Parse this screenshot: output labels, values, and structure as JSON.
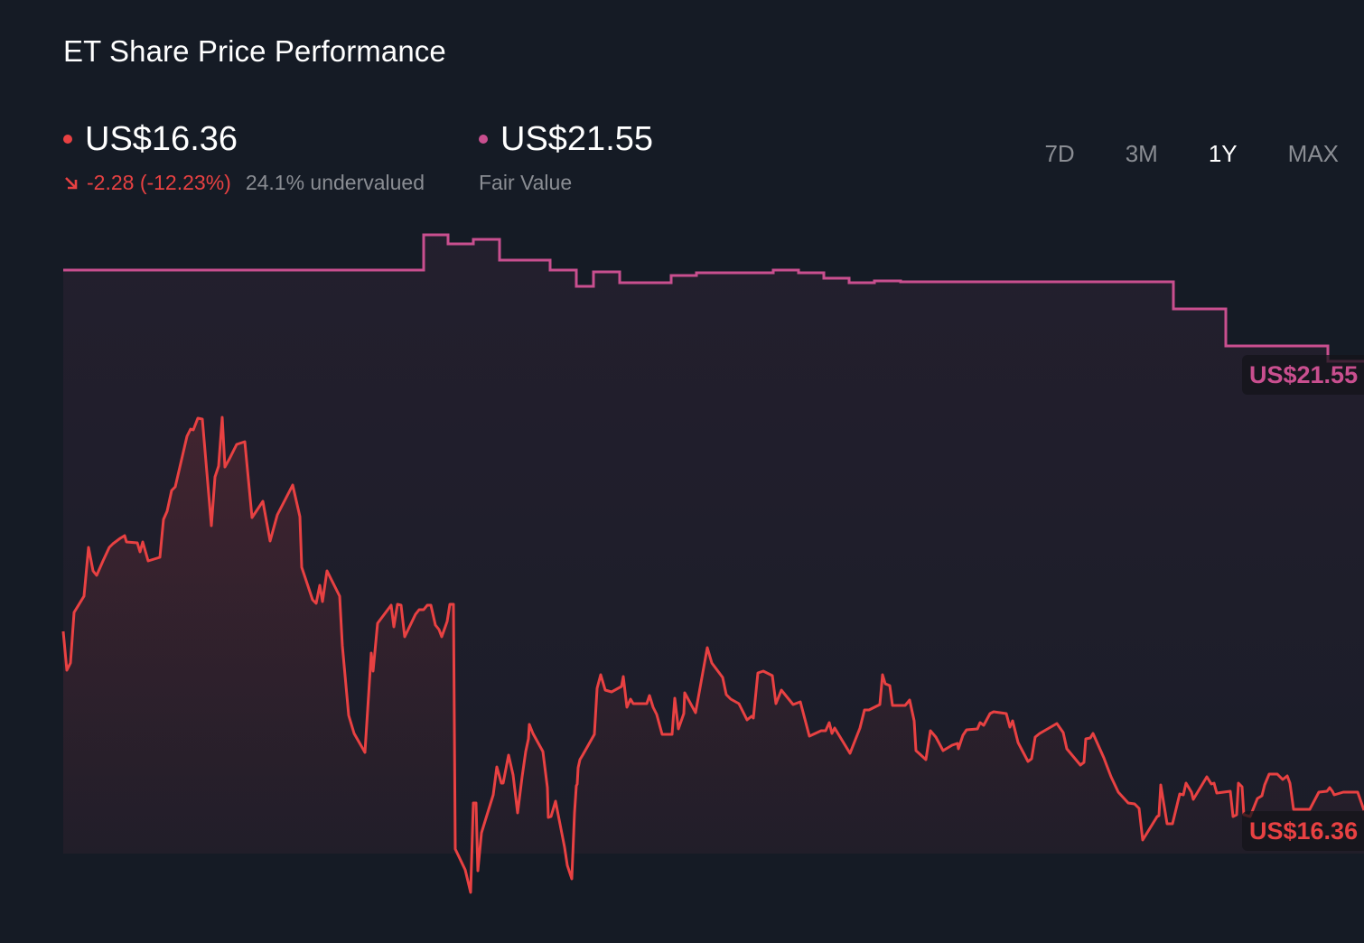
{
  "header": {
    "title": "ET Share Price Performance"
  },
  "price": {
    "value": "US$16.36",
    "dot_color": "#e84142",
    "change": "-2.28 (-12.23%)",
    "change_icon": "arrow-down-right-icon",
    "valuation": "24.1% undervalued"
  },
  "fair_value": {
    "value": "US$21.55",
    "dot_color": "#c94f8f",
    "label": "Fair Value"
  },
  "range_tabs": [
    {
      "label": "7D",
      "active": false
    },
    {
      "label": "3M",
      "active": false
    },
    {
      "label": "1Y",
      "active": true
    },
    {
      "label": "MAX",
      "active": false
    }
  ],
  "tags": {
    "fair_value": "US$21.55",
    "price": "US$16.36"
  },
  "colors": {
    "background": "#151b25",
    "price_line": "#e84142",
    "fair_value_line": "#c94f8f",
    "muted_text": "#8a8d93"
  },
  "chart_data": {
    "type": "line",
    "title": "ET Share Price Performance",
    "xlabel": "",
    "ylabel": "",
    "range": "1Y",
    "grid": false,
    "legend": [
      "Share Price (US$16.36)",
      "Fair Value (US$21.55)"
    ],
    "series": [
      {
        "name": "Fair Value",
        "color": "#c94f8f",
        "style": "step",
        "approx_values": [
          23.2,
          23.2,
          23.2,
          23.9,
          23.7,
          23.8,
          23.4,
          23.3,
          23.0,
          23.2,
          23.0,
          23.0,
          23.1,
          23.15,
          23.15,
          23.2,
          23.1,
          23.0,
          23.05,
          23.0,
          23.0,
          22.6,
          21.9,
          21.55
        ],
        "last": 21.55
      },
      {
        "name": "Share Price",
        "color": "#e84142",
        "style": "line",
        "approx_values": [
          18.7,
          19.5,
          19.9,
          19.6,
          20.2,
          20.1,
          20.4,
          21.3,
          22.1,
          21.0,
          22.1,
          21.2,
          21.4,
          20.3,
          19.3,
          17.8,
          19.4,
          19.5,
          19.1,
          19.5,
          15.6,
          14.8,
          16.2,
          17.2,
          16.0,
          14.9,
          16.8,
          18.3,
          18.1,
          18.0,
          18.7,
          17.3,
          18.2,
          17.7,
          18.0,
          17.8,
          17.7,
          17.6,
          17.3,
          17.6,
          17.4,
          16.9,
          17.4,
          17.3,
          17.6,
          17.5,
          16.6,
          16.7,
          16.2,
          16.5,
          16.6,
          16.4,
          16.5,
          16.36
        ],
        "last": 16.36,
        "change": -2.28,
        "change_pct": -12.23
      }
    ],
    "annotations": [
      "US$21.55",
      "US$16.36",
      "24.1% undervalued"
    ]
  }
}
